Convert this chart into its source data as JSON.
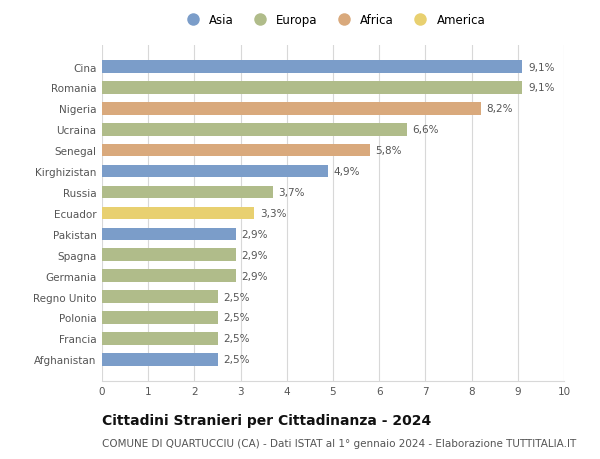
{
  "countries": [
    "Cina",
    "Romania",
    "Nigeria",
    "Ucraina",
    "Senegal",
    "Kirghizistan",
    "Russia",
    "Ecuador",
    "Pakistan",
    "Spagna",
    "Germania",
    "Regno Unito",
    "Polonia",
    "Francia",
    "Afghanistan"
  ],
  "values": [
    9.1,
    9.1,
    8.2,
    6.6,
    5.8,
    4.9,
    3.7,
    3.3,
    2.9,
    2.9,
    2.9,
    2.5,
    2.5,
    2.5,
    2.5
  ],
  "labels": [
    "9,1%",
    "9,1%",
    "8,2%",
    "6,6%",
    "5,8%",
    "4,9%",
    "3,7%",
    "3,3%",
    "2,9%",
    "2,9%",
    "2,9%",
    "2,5%",
    "2,5%",
    "2,5%",
    "2,5%"
  ],
  "continents": [
    "Asia",
    "Europa",
    "Africa",
    "Europa",
    "Africa",
    "Asia",
    "Europa",
    "America",
    "Asia",
    "Europa",
    "Europa",
    "Europa",
    "Europa",
    "Europa",
    "Asia"
  ],
  "colors": {
    "Asia": "#7b9dc9",
    "Europa": "#b0bc8a",
    "Africa": "#d9a97c",
    "America": "#e8d070"
  },
  "xlim": [
    0,
    10
  ],
  "xticks": [
    0,
    1,
    2,
    3,
    4,
    5,
    6,
    7,
    8,
    9,
    10
  ],
  "title": "Cittadini Stranieri per Cittadinanza - 2024",
  "subtitle": "COMUNE DI QUARTUCCIU (CA) - Dati ISTAT al 1° gennaio 2024 - Elaborazione TUTTITALIA.IT",
  "background_color": "#ffffff",
  "grid_color": "#d8d8d8",
  "bar_height": 0.6,
  "label_fontsize": 7.5,
  "title_fontsize": 10,
  "subtitle_fontsize": 7.5,
  "tick_fontsize": 7.5,
  "ytick_fontsize": 7.5,
  "legend_order": [
    "Asia",
    "Europa",
    "Africa",
    "America"
  ]
}
